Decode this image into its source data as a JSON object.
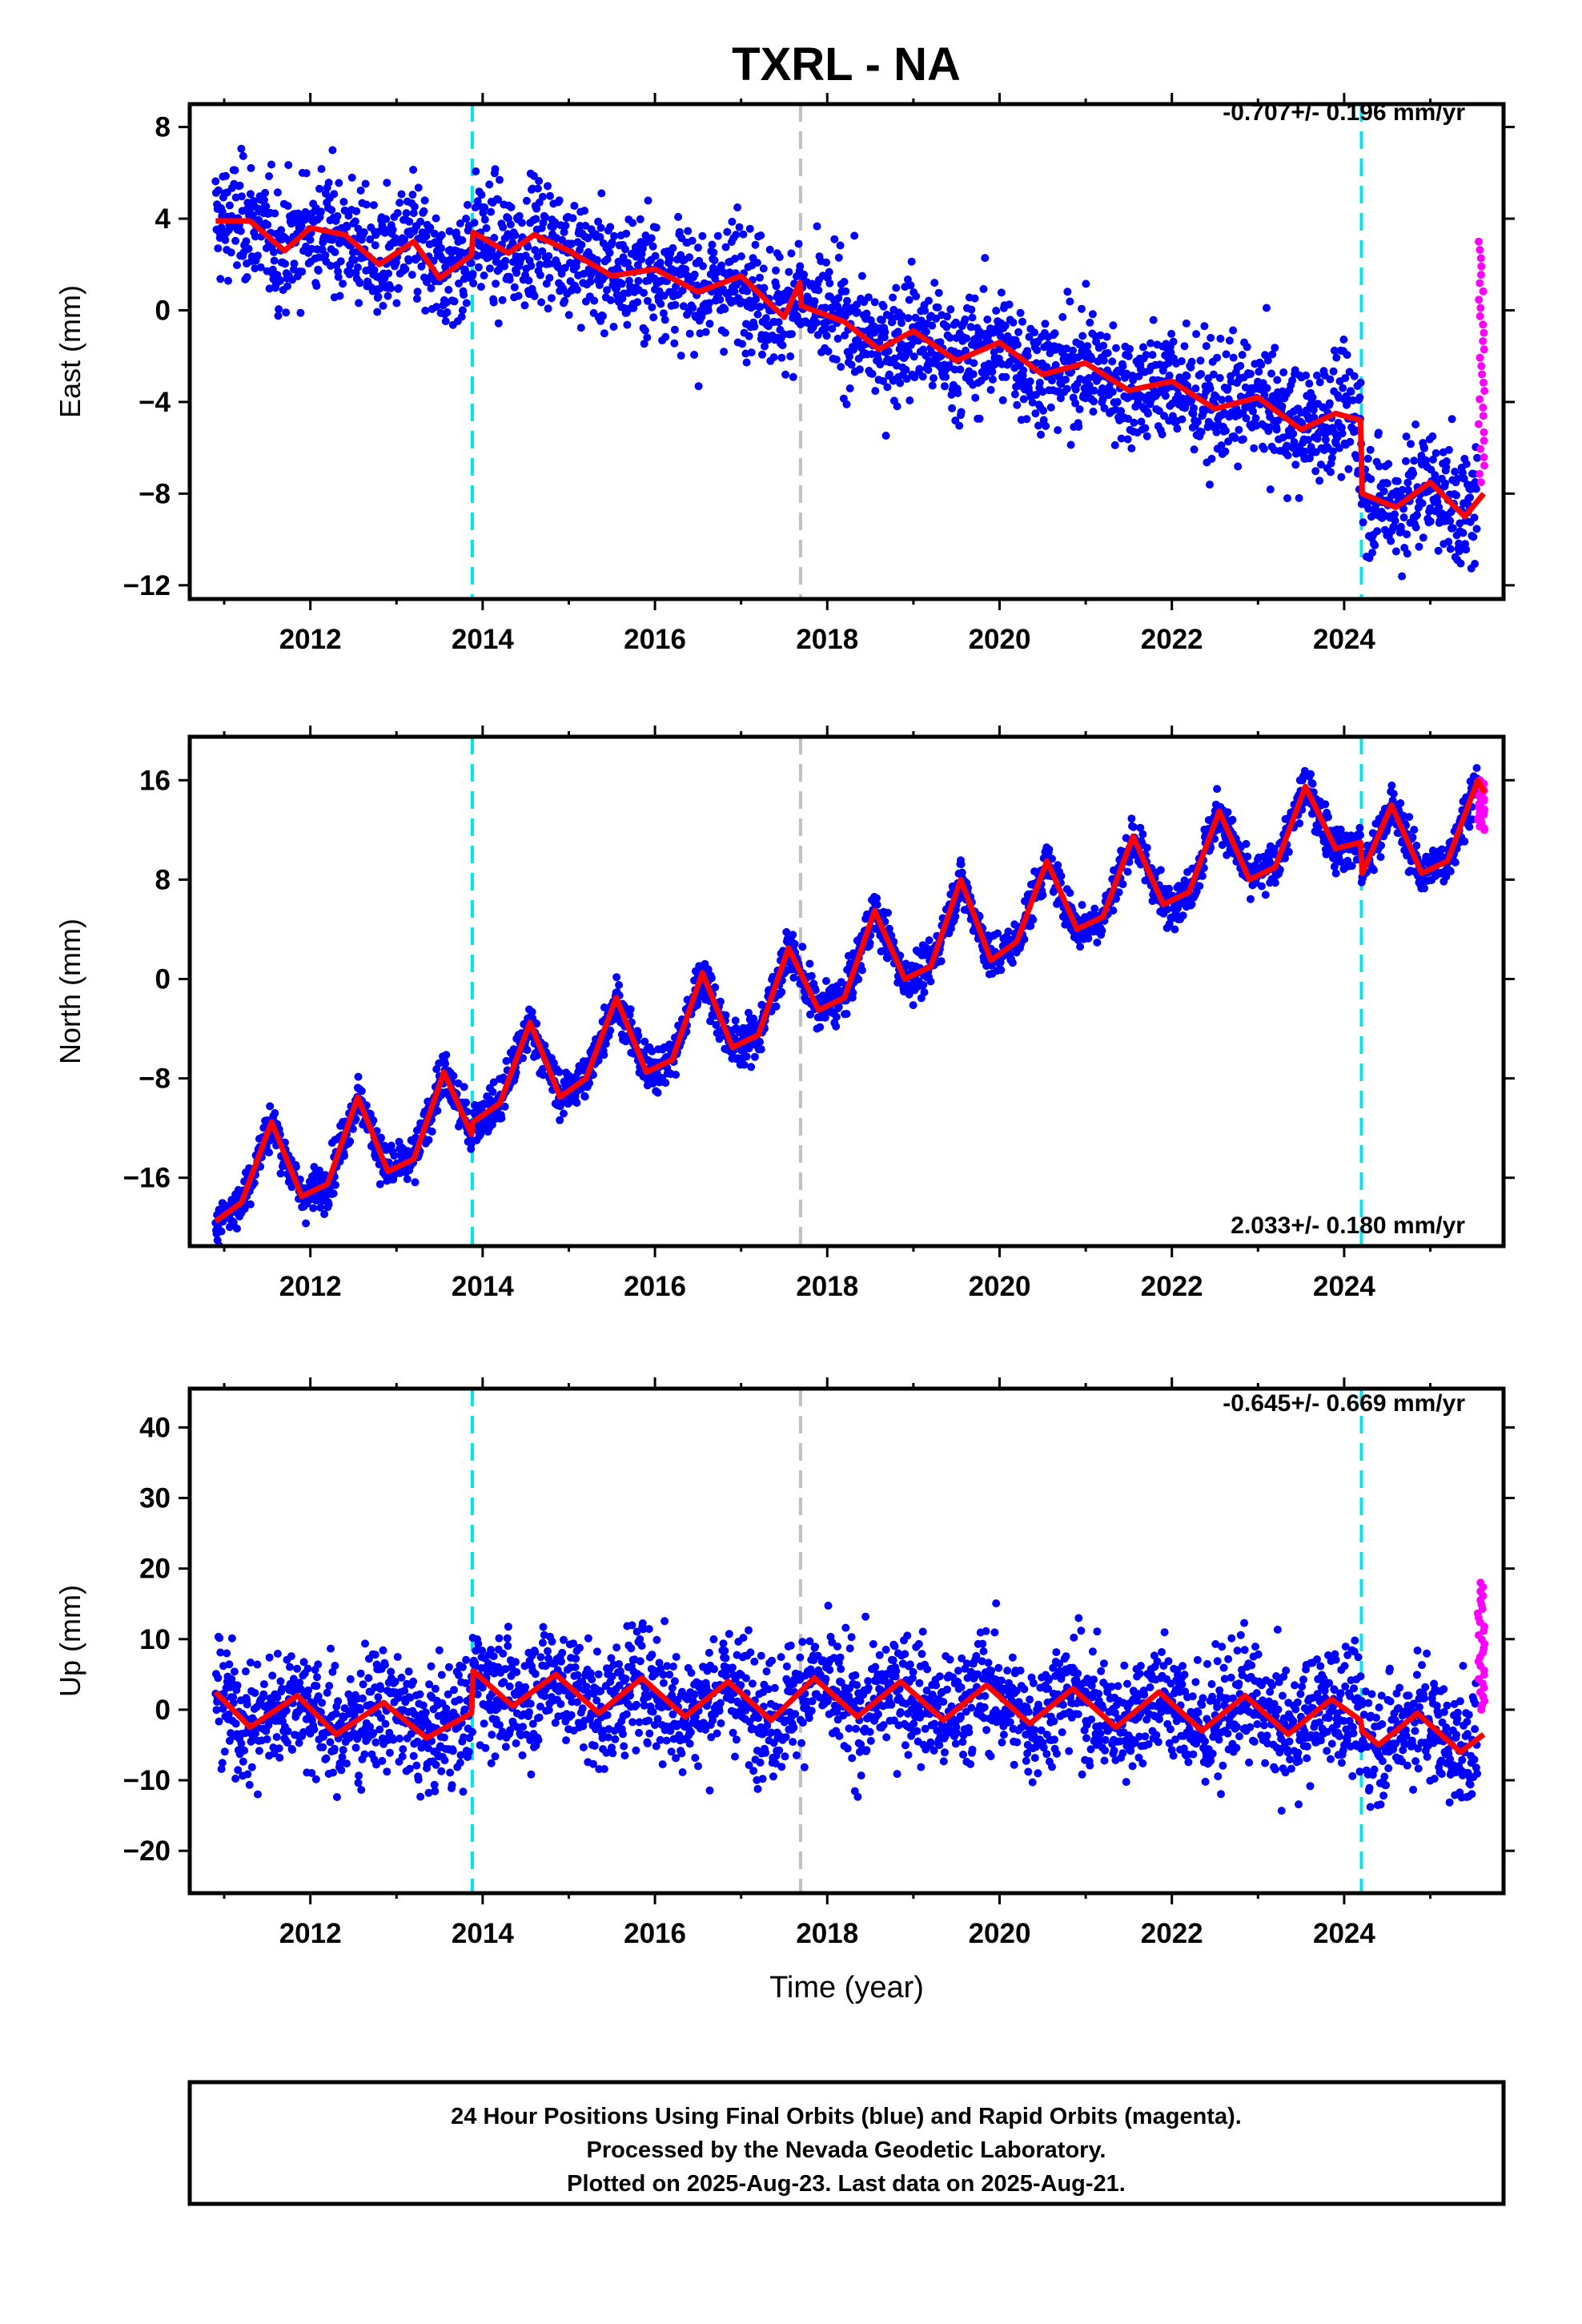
{
  "title": "TXRL - NA",
  "chart_data": [
    {
      "type": "scatter",
      "component": "east",
      "ylabel": "East (mm)",
      "xlabel": "",
      "rate_label": "-0.707+/- 0.196 mm/yr",
      "xlim": [
        2010.6,
        2025.85
      ],
      "ylim": [
        -12.6,
        9.0
      ],
      "xticks": [
        2012,
        2014,
        2016,
        2018,
        2020,
        2022,
        2024
      ],
      "yticks": [
        -12,
        -8,
        -4,
        0,
        4,
        8
      ],
      "ytick_labels": [
        "−12",
        "−8",
        "−4",
        "0",
        "4",
        "8"
      ],
      "events": [
        {
          "x": 2013.88,
          "kind": "equipment",
          "color": "#00e5ee"
        },
        {
          "x": 2017.69,
          "kind": "other",
          "color": "#c0c0c0"
        },
        {
          "x": 2024.2,
          "kind": "equipment",
          "color": "#00e5ee"
        }
      ],
      "series": [
        {
          "kind": "final_orbits",
          "color": "#0000ff",
          "x_range": [
            2010.9,
            2025.55
          ],
          "noise_sd": 1.3,
          "y_start": 3.5,
          "rate_per_yr": -0.707,
          "seasonal_amp": 0.6
        },
        {
          "kind": "rapid_orbits",
          "color": "#ff00ff",
          "x_range": [
            2025.55,
            2025.63
          ],
          "y_min": -7.5,
          "y_max": 3.0
        },
        {
          "kind": "model_fit",
          "color": "#ff0000",
          "points": [
            [
              2010.9,
              3.9
            ],
            [
              2011.3,
              3.9
            ],
            [
              2011.7,
              2.6
            ],
            [
              2012.0,
              3.6
            ],
            [
              2012.4,
              3.3
            ],
            [
              2012.8,
              2.0
            ],
            [
              2013.2,
              3.0
            ],
            [
              2013.5,
              1.4
            ],
            [
              2013.87,
              2.4
            ],
            [
              2013.89,
              3.4
            ],
            [
              2014.3,
              2.5
            ],
            [
              2014.6,
              3.3
            ],
            [
              2015.0,
              2.6
            ],
            [
              2015.5,
              1.5
            ],
            [
              2016.0,
              1.8
            ],
            [
              2016.5,
              0.8
            ],
            [
              2017.0,
              1.5
            ],
            [
              2017.5,
              -0.3
            ],
            [
              2017.68,
              1.2
            ],
            [
              2017.7,
              0.2
            ],
            [
              2018.2,
              -0.5
            ],
            [
              2018.6,
              -1.7
            ],
            [
              2019.0,
              -0.9
            ],
            [
              2019.5,
              -2.2
            ],
            [
              2020.0,
              -1.4
            ],
            [
              2020.5,
              -2.8
            ],
            [
              2021.0,
              -2.3
            ],
            [
              2021.5,
              -3.5
            ],
            [
              2022.0,
              -3.1
            ],
            [
              2022.5,
              -4.3
            ],
            [
              2023.0,
              -3.8
            ],
            [
              2023.5,
              -5.2
            ],
            [
              2023.9,
              -4.5
            ],
            [
              2024.19,
              -4.8
            ],
            [
              2024.21,
              -8.0
            ],
            [
              2024.6,
              -8.6
            ],
            [
              2025.0,
              -7.5
            ],
            [
              2025.4,
              -9.0
            ],
            [
              2025.62,
              -8.0
            ]
          ]
        }
      ]
    },
    {
      "type": "scatter",
      "component": "north",
      "ylabel": "North (mm)",
      "xlabel": "",
      "rate_label": "2.033+/- 0.180 mm/yr",
      "xlim": [
        2010.6,
        2025.85
      ],
      "ylim": [
        -21.5,
        19.5
      ],
      "xticks": [
        2012,
        2014,
        2016,
        2018,
        2020,
        2022,
        2024
      ],
      "yticks": [
        -16,
        -8,
        0,
        8,
        16
      ],
      "ytick_labels": [
        "−16",
        "−8",
        "0",
        "8",
        "16"
      ],
      "events": [
        {
          "x": 2013.88,
          "kind": "equipment",
          "color": "#00e5ee"
        },
        {
          "x": 2017.69,
          "kind": "other",
          "color": "#c0c0c0"
        },
        {
          "x": 2024.2,
          "kind": "equipment",
          "color": "#00e5ee"
        }
      ],
      "series": [
        {
          "kind": "final_orbits",
          "color": "#0000ff",
          "x_range": [
            2010.9,
            2025.55
          ],
          "noise_sd": 0.9,
          "y_start": -19.0,
          "rate_per_yr": 2.033,
          "seasonal_amp": 3.0
        },
        {
          "kind": "rapid_orbits",
          "color": "#ff00ff",
          "x_range": [
            2025.55,
            2025.63
          ],
          "y_min": 12.0,
          "y_max": 16.0
        },
        {
          "kind": "model_fit",
          "color": "#ff0000",
          "points": [
            [
              2010.9,
              -19.5
            ],
            [
              2011.2,
              -18.0
            ],
            [
              2011.55,
              -11.5
            ],
            [
              2011.9,
              -17.5
            ],
            [
              2012.2,
              -16.5
            ],
            [
              2012.55,
              -9.5
            ],
            [
              2012.9,
              -15.5
            ],
            [
              2013.2,
              -14.5
            ],
            [
              2013.55,
              -7.5
            ],
            [
              2013.87,
              -12.5
            ],
            [
              2013.89,
              -11.5
            ],
            [
              2014.2,
              -10.0
            ],
            [
              2014.55,
              -3.5
            ],
            [
              2014.9,
              -9.5
            ],
            [
              2015.2,
              -8.0
            ],
            [
              2015.55,
              -1.5
            ],
            [
              2015.9,
              -7.5
            ],
            [
              2016.2,
              -6.5
            ],
            [
              2016.55,
              0.5
            ],
            [
              2016.9,
              -5.5
            ],
            [
              2017.2,
              -4.5
            ],
            [
              2017.55,
              2.5
            ],
            [
              2017.9,
              -2.5
            ],
            [
              2018.2,
              -1.5
            ],
            [
              2018.55,
              5.5
            ],
            [
              2018.9,
              0.0
            ],
            [
              2019.2,
              1.0
            ],
            [
              2019.55,
              8.0
            ],
            [
              2019.9,
              1.5
            ],
            [
              2020.2,
              3.0
            ],
            [
              2020.55,
              9.5
            ],
            [
              2020.9,
              4.0
            ],
            [
              2021.2,
              5.0
            ],
            [
              2021.55,
              11.5
            ],
            [
              2021.9,
              6.0
            ],
            [
              2022.2,
              7.0
            ],
            [
              2022.55,
              13.5
            ],
            [
              2022.9,
              8.0
            ],
            [
              2023.2,
              9.0
            ],
            [
              2023.55,
              15.5
            ],
            [
              2023.9,
              10.5
            ],
            [
              2024.19,
              11.0
            ],
            [
              2024.21,
              8.5
            ],
            [
              2024.55,
              14.0
            ],
            [
              2024.9,
              8.5
            ],
            [
              2025.2,
              9.5
            ],
            [
              2025.55,
              16.0
            ],
            [
              2025.63,
              15.0
            ]
          ]
        }
      ]
    },
    {
      "type": "scatter",
      "component": "up",
      "ylabel": "Up (mm)",
      "xlabel": "Time (year)",
      "rate_label": "-0.645+/- 0.669 mm/yr",
      "xlim": [
        2010.6,
        2025.85
      ],
      "ylim": [
        -26.0,
        45.5
      ],
      "xticks": [
        2012,
        2014,
        2016,
        2018,
        2020,
        2022,
        2024
      ],
      "yticks": [
        -20,
        -10,
        0,
        10,
        20,
        30,
        40
      ],
      "ytick_labels": [
        "−20",
        "−10",
        "0",
        "10",
        "20",
        "30",
        "40"
      ],
      "events": [
        {
          "x": 2013.88,
          "kind": "equipment",
          "color": "#00e5ee"
        },
        {
          "x": 2017.69,
          "kind": "other",
          "color": "#c0c0c0"
        },
        {
          "x": 2024.2,
          "kind": "equipment",
          "color": "#00e5ee"
        }
      ],
      "series": [
        {
          "kind": "final_orbits",
          "color": "#0000ff",
          "x_range": [
            2010.9,
            2025.55
          ],
          "noise_sd": 4.2,
          "y_start": 0.0,
          "rate_per_yr": -0.645,
          "seasonal_amp": 3.0
        },
        {
          "kind": "rapid_orbits",
          "color": "#ff00ff",
          "x_range": [
            2025.55,
            2025.63
          ],
          "y_min": 0.0,
          "y_max": 18.0
        },
        {
          "kind": "model_fit",
          "color": "#ff0000",
          "points": [
            [
              2010.9,
              2.5
            ],
            [
              2011.3,
              -2.5
            ],
            [
              2011.85,
              2.0
            ],
            [
              2012.3,
              -3.5
            ],
            [
              2012.85,
              1.0
            ],
            [
              2013.35,
              -4.0
            ],
            [
              2013.87,
              -0.5
            ],
            [
              2013.89,
              5.5
            ],
            [
              2014.35,
              0.5
            ],
            [
              2014.85,
              5.0
            ],
            [
              2015.35,
              -0.5
            ],
            [
              2015.85,
              4.5
            ],
            [
              2016.35,
              -1.0
            ],
            [
              2016.85,
              4.0
            ],
            [
              2017.35,
              -1.5
            ],
            [
              2017.85,
              4.5
            ],
            [
              2018.35,
              -1.0
            ],
            [
              2018.85,
              4.0
            ],
            [
              2019.35,
              -1.5
            ],
            [
              2019.85,
              3.5
            ],
            [
              2020.35,
              -2.0
            ],
            [
              2020.85,
              3.0
            ],
            [
              2021.35,
              -2.5
            ],
            [
              2021.85,
              2.5
            ],
            [
              2022.35,
              -3.0
            ],
            [
              2022.85,
              2.0
            ],
            [
              2023.35,
              -3.5
            ],
            [
              2023.85,
              1.5
            ],
            [
              2024.19,
              -1.5
            ],
            [
              2024.21,
              -3.0
            ],
            [
              2024.4,
              -5.0
            ],
            [
              2024.85,
              -0.5
            ],
            [
              2025.35,
              -6.0
            ],
            [
              2025.62,
              -3.5
            ]
          ]
        }
      ]
    }
  ],
  "footer": {
    "line1": "24 Hour Positions Using Final Orbits (blue) and Rapid Orbits (magenta).",
    "line2": "Processed by the Nevada Geodetic Laboratory.",
    "line3": "Plotted on 2025-Aug-23. Last data on 2025-Aug-21."
  }
}
